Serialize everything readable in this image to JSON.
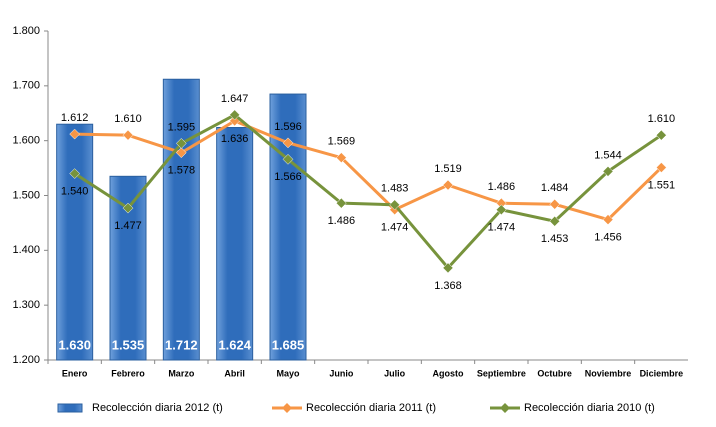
{
  "chart_data": {
    "type": "bar_line",
    "categories": [
      "Enero",
      "Febrero",
      "Marzo",
      "Abril",
      "Mayo",
      "Junio",
      "Julio",
      "Agosto",
      "Septiembre",
      "Octubre",
      "Noviembre",
      "Diciembre"
    ],
    "series": [
      {
        "name": "Recolección diaria  2012 (t)",
        "type": "bar",
        "color": "#2f6dbb",
        "values": [
          1630,
          1535,
          1712,
          1624,
          1685,
          null,
          null,
          null,
          null,
          null,
          null,
          null
        ],
        "value_labels": [
          "1.630",
          "1.535",
          "1.712",
          "1.624",
          "1.685",
          null,
          null,
          null,
          null,
          null,
          null,
          null
        ]
      },
      {
        "name": "Recolección diaria  2011 (t)",
        "type": "line",
        "color": "#f79646",
        "values": [
          1612,
          1610,
          1578,
          1636,
          1596,
          1569,
          1474,
          1519,
          1486,
          1484,
          1456,
          1551
        ],
        "value_labels": [
          "1.612",
          "1.610",
          "1.578",
          "1.636",
          "1.596",
          "1.569",
          "1.474",
          "1.519",
          "1.486",
          "1.484",
          "1.456",
          "1.551"
        ]
      },
      {
        "name": "Recolección diaria 2010 (t)",
        "type": "line",
        "color": "#77933c",
        "values": [
          1540,
          1477,
          1595,
          1647,
          1566,
          1486,
          1483,
          1368,
          1474,
          1453,
          1544,
          1610
        ],
        "value_labels": [
          "1.540",
          "1.477",
          "1.595",
          "1.647",
          "1.566",
          "1.486",
          "1.483",
          "1.368",
          "1.474",
          "1.453",
          "1.544",
          "1.610"
        ]
      }
    ],
    "ylim": [
      1200,
      1800
    ],
    "yticks": [
      {
        "value": 1200,
        "label": "1.200"
      },
      {
        "value": 1300,
        "label": "1.300"
      },
      {
        "value": 1400,
        "label": "1.400"
      },
      {
        "value": 1500,
        "label": "1.500"
      },
      {
        "value": 1600,
        "label": "1.600"
      },
      {
        "value": 1700,
        "label": "1.700"
      },
      {
        "value": 1800,
        "label": "1.800"
      }
    ],
    "grid": false,
    "legend": "bottom"
  }
}
